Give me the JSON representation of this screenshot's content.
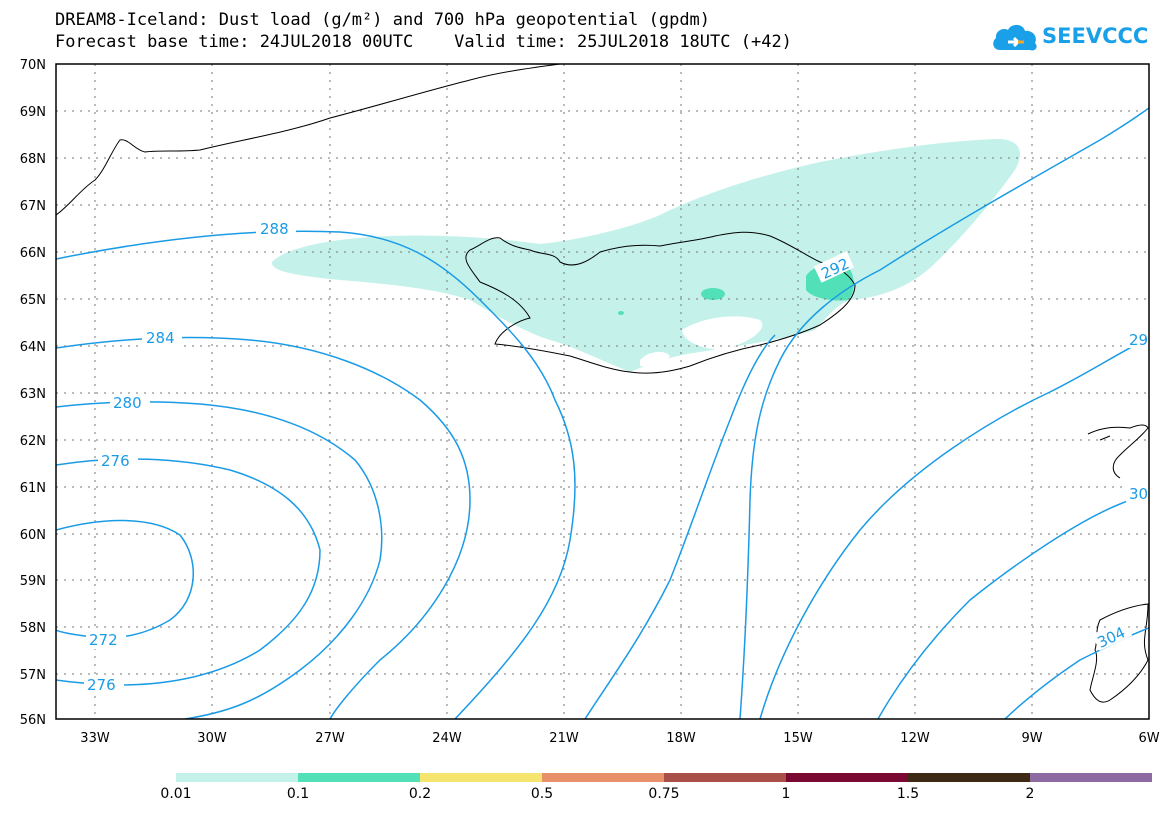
{
  "title_line1": "DREAM8-Iceland: Dust load (g/m²) and 700 hPa geopotential (gpdm)",
  "title_line2": "Forecast base time: 24JUL2018 00UTC    Valid time: 25JUL2018 18UTC (+42)",
  "logo": {
    "text": "SEEVCCC",
    "icon": "cloud-icon",
    "color": "#1aa0e8"
  },
  "map": {
    "lat_labels": [
      "70N",
      "69N",
      "68N",
      "67N",
      "66N",
      "65N",
      "64N",
      "63N",
      "62N",
      "61N",
      "60N",
      "59N",
      "58N",
      "57N",
      "56N"
    ],
    "lon_labels": [
      "33W",
      "30W",
      "27W",
      "24W",
      "21W",
      "18W",
      "15W",
      "12W",
      "9W",
      "6W"
    ],
    "contour_labels": [
      "288",
      "284",
      "280",
      "276",
      "272",
      "276",
      "292",
      "29",
      "30",
      "304"
    ],
    "contour_color": "#1a9be6"
  },
  "colorbar": {
    "colors": [
      "#c4f2ea",
      "#52e0b8",
      "#f5e46e",
      "#e8906a",
      "#a85048",
      "#7a0830",
      "#3e2a14",
      "#8e6aa2"
    ],
    "labels": [
      "0.01",
      "0.1",
      "0.2",
      "0.5",
      "0.75",
      "1",
      "1.5",
      "2"
    ]
  }
}
